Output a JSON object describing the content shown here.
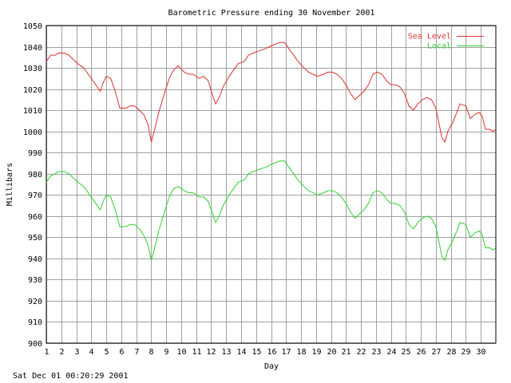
{
  "colors": {
    "background": "#ffffff",
    "grid": "#a0a0a0",
    "axis": "#000000",
    "sea_level": "#e03030",
    "local": "#30d030"
  },
  "footer_timestamp": "Sat Dec 01 00:20:29 2001",
  "chart_data": {
    "type": "line",
    "title": "Barometric Pressure ending 30 November 2001",
    "xlabel": "Day",
    "ylabel": "Millibars",
    "xlim": [
      1,
      31
    ],
    "ylim": [
      900,
      1050
    ],
    "ytick_step": 10,
    "grid": true,
    "legend": "top-right",
    "x_tick_labels": [
      "1",
      "2",
      "3",
      "4",
      "5",
      "6",
      "7",
      "8",
      "9",
      "10",
      "11",
      "12",
      "13",
      "14",
      "15",
      "16",
      "17",
      "18",
      "19",
      "20",
      "21",
      "22",
      "23",
      "24",
      "25",
      "26",
      "27",
      "28",
      "29",
      "30"
    ],
    "series": [
      {
        "name": "Sea Level",
        "color": "#e03030",
        "points": [
          [
            1,
            1033
          ],
          [
            1.3,
            1036
          ],
          [
            1.6,
            1036
          ],
          [
            1.8,
            1037
          ],
          [
            2.2,
            1037
          ],
          [
            2.5,
            1036
          ],
          [
            2.8,
            1034
          ],
          [
            3.1,
            1032
          ],
          [
            3.5,
            1030
          ],
          [
            3.8,
            1027
          ],
          [
            4.1,
            1024
          ],
          [
            4.4,
            1021
          ],
          [
            4.6,
            1019
          ],
          [
            4.8,
            1023
          ],
          [
            5,
            1026
          ],
          [
            5.3,
            1025
          ],
          [
            5.6,
            1019
          ],
          [
            5.9,
            1011
          ],
          [
            6.3,
            1011
          ],
          [
            6.6,
            1012
          ],
          [
            6.9,
            1012
          ],
          [
            7.2,
            1010
          ],
          [
            7.5,
            1008
          ],
          [
            7.8,
            1003
          ],
          [
            8,
            995
          ],
          [
            8.2,
            1000
          ],
          [
            8.5,
            1009
          ],
          [
            8.8,
            1016
          ],
          [
            9.2,
            1025
          ],
          [
            9.5,
            1029
          ],
          [
            9.8,
            1031
          ],
          [
            10.2,
            1028
          ],
          [
            10.5,
            1027
          ],
          [
            10.8,
            1027
          ],
          [
            11.2,
            1025
          ],
          [
            11.5,
            1026
          ],
          [
            11.8,
            1024
          ],
          [
            12.1,
            1017
          ],
          [
            12.3,
            1013
          ],
          [
            12.6,
            1017
          ],
          [
            12.8,
            1021
          ],
          [
            13.2,
            1026
          ],
          [
            13.5,
            1029
          ],
          [
            13.8,
            1032
          ],
          [
            14.2,
            1033
          ],
          [
            14.5,
            1036
          ],
          [
            14.8,
            1037
          ],
          [
            15.2,
            1038
          ],
          [
            15.6,
            1039
          ],
          [
            15.9,
            1040
          ],
          [
            16.2,
            1041
          ],
          [
            16.6,
            1042
          ],
          [
            16.9,
            1042
          ],
          [
            17.2,
            1039
          ],
          [
            17.5,
            1036
          ],
          [
            17.8,
            1033
          ],
          [
            18.2,
            1030
          ],
          [
            18.5,
            1028
          ],
          [
            18.8,
            1027
          ],
          [
            19.1,
            1026
          ],
          [
            19.5,
            1027
          ],
          [
            19.8,
            1028
          ],
          [
            20.1,
            1028
          ],
          [
            20.4,
            1027
          ],
          [
            20.7,
            1025
          ],
          [
            21,
            1022
          ],
          [
            21.3,
            1018
          ],
          [
            21.6,
            1015
          ],
          [
            21.9,
            1017
          ],
          [
            22.2,
            1019
          ],
          [
            22.5,
            1022
          ],
          [
            22.8,
            1027
          ],
          [
            23.1,
            1028
          ],
          [
            23.4,
            1027
          ],
          [
            23.7,
            1024
          ],
          [
            24,
            1022
          ],
          [
            24.3,
            1022
          ],
          [
            24.6,
            1021
          ],
          [
            24.9,
            1018
          ],
          [
            25.2,
            1012
          ],
          [
            25.5,
            1010
          ],
          [
            25.8,
            1013
          ],
          [
            26.1,
            1015
          ],
          [
            26.4,
            1016
          ],
          [
            26.7,
            1015
          ],
          [
            27,
            1011
          ],
          [
            27.2,
            1004
          ],
          [
            27.4,
            997
          ],
          [
            27.6,
            995
          ],
          [
            27.8,
            1000
          ],
          [
            28.1,
            1004
          ],
          [
            28.4,
            1009
          ],
          [
            28.6,
            1013
          ],
          [
            29,
            1012
          ],
          [
            29.3,
            1006
          ],
          [
            29.6,
            1008
          ],
          [
            29.9,
            1009
          ],
          [
            30.1,
            1007
          ],
          [
            30.3,
            1001
          ],
          [
            30.6,
            1001
          ],
          [
            30.8,
            1000
          ],
          [
            31,
            1001
          ]
        ]
      },
      {
        "name": "Local",
        "color": "#30d030",
        "points": [
          [
            1,
            976
          ],
          [
            1.3,
            979
          ],
          [
            1.6,
            980
          ],
          [
            1.8,
            981
          ],
          [
            2.2,
            981
          ],
          [
            2.5,
            980
          ],
          [
            2.8,
            978
          ],
          [
            3.1,
            976
          ],
          [
            3.5,
            974
          ],
          [
            3.8,
            971
          ],
          [
            4.1,
            968
          ],
          [
            4.4,
            965
          ],
          [
            4.6,
            963
          ],
          [
            4.8,
            967
          ],
          [
            5,
            970
          ],
          [
            5.3,
            969
          ],
          [
            5.6,
            963
          ],
          [
            5.9,
            955
          ],
          [
            6.3,
            955
          ],
          [
            6.6,
            956
          ],
          [
            6.9,
            956
          ],
          [
            7.2,
            954
          ],
          [
            7.5,
            951
          ],
          [
            7.8,
            946
          ],
          [
            8,
            939
          ],
          [
            8.2,
            944
          ],
          [
            8.5,
            953
          ],
          [
            8.8,
            960
          ],
          [
            9.2,
            969
          ],
          [
            9.5,
            973
          ],
          [
            9.8,
            974
          ],
          [
            10.2,
            972
          ],
          [
            10.5,
            971
          ],
          [
            10.8,
            971
          ],
          [
            11.2,
            969
          ],
          [
            11.5,
            969
          ],
          [
            11.8,
            967
          ],
          [
            12.1,
            961
          ],
          [
            12.3,
            957
          ],
          [
            12.6,
            961
          ],
          [
            12.8,
            965
          ],
          [
            13.2,
            970
          ],
          [
            13.5,
            973
          ],
          [
            13.8,
            976
          ],
          [
            14.2,
            977
          ],
          [
            14.5,
            980
          ],
          [
            14.8,
            981
          ],
          [
            15.2,
            982
          ],
          [
            15.6,
            983
          ],
          [
            15.9,
            984
          ],
          [
            16.2,
            985
          ],
          [
            16.6,
            986
          ],
          [
            16.9,
            986
          ],
          [
            17.2,
            983
          ],
          [
            17.5,
            980
          ],
          [
            17.8,
            977
          ],
          [
            18.2,
            974
          ],
          [
            18.5,
            972
          ],
          [
            18.8,
            971
          ],
          [
            19.1,
            970
          ],
          [
            19.5,
            971
          ],
          [
            19.8,
            972
          ],
          [
            20.1,
            972
          ],
          [
            20.4,
            971
          ],
          [
            20.7,
            969
          ],
          [
            21,
            966
          ],
          [
            21.3,
            962
          ],
          [
            21.6,
            959
          ],
          [
            21.9,
            961
          ],
          [
            22.2,
            963
          ],
          [
            22.5,
            966
          ],
          [
            22.8,
            971
          ],
          [
            23.1,
            972
          ],
          [
            23.4,
            971
          ],
          [
            23.7,
            968
          ],
          [
            24,
            966
          ],
          [
            24.3,
            966
          ],
          [
            24.6,
            965
          ],
          [
            24.9,
            962
          ],
          [
            25.2,
            956
          ],
          [
            25.5,
            954
          ],
          [
            25.8,
            957
          ],
          [
            26.1,
            959
          ],
          [
            26.4,
            960
          ],
          [
            26.7,
            959
          ],
          [
            27,
            955
          ],
          [
            27.2,
            948
          ],
          [
            27.4,
            941
          ],
          [
            27.6,
            939
          ],
          [
            27.8,
            944
          ],
          [
            28.1,
            948
          ],
          [
            28.4,
            953
          ],
          [
            28.6,
            957
          ],
          [
            29,
            956
          ],
          [
            29.3,
            950
          ],
          [
            29.6,
            952
          ],
          [
            29.9,
            953
          ],
          [
            30.1,
            951
          ],
          [
            30.3,
            945
          ],
          [
            30.6,
            945
          ],
          [
            30.8,
            944
          ],
          [
            31,
            945
          ]
        ]
      }
    ]
  }
}
